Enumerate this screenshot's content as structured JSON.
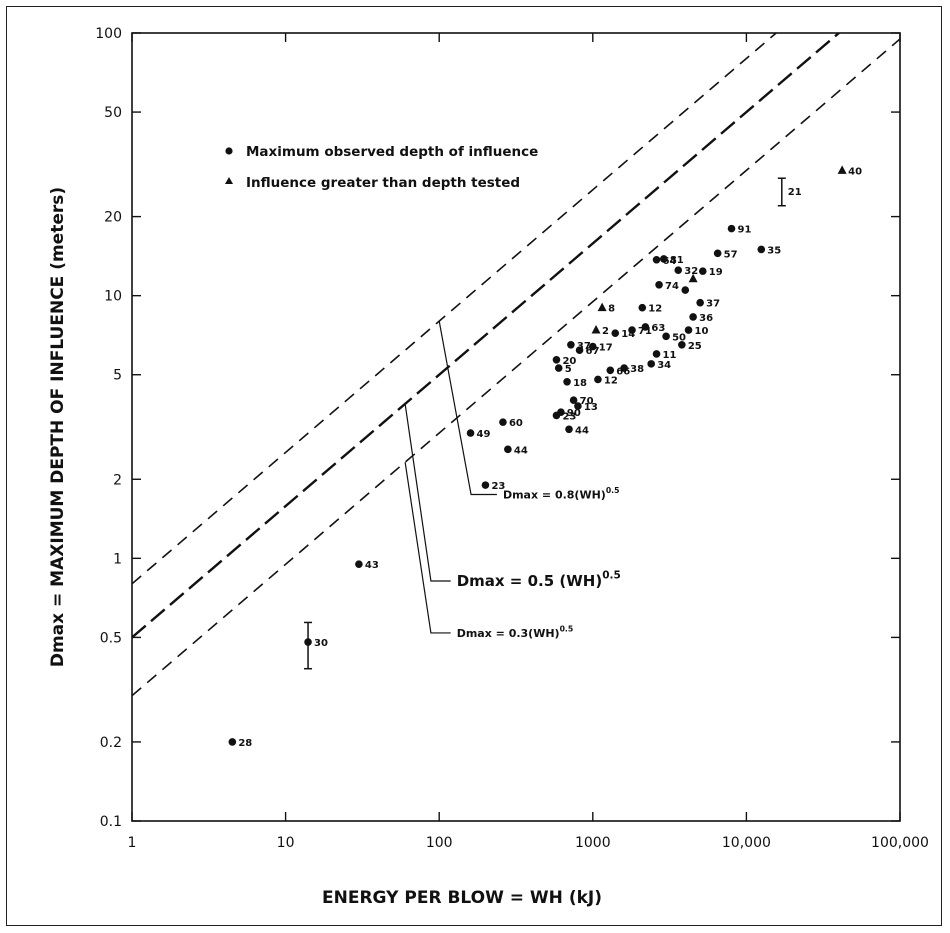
{
  "chart_data": {
    "type": "scatter",
    "xscale": "log",
    "yscale": "log",
    "xlim": [
      1,
      100000
    ],
    "ylim": [
      0.1,
      100
    ],
    "xlabel": "ENERGY PER BLOW = WH (kJ)",
    "ylabel": "Dmax = MAXIMUM DEPTH OF INFLUENCE (meters)",
    "x_ticks": [
      {
        "value": 1,
        "label": "1"
      },
      {
        "value": 10,
        "label": "10"
      },
      {
        "value": 100,
        "label": "100"
      },
      {
        "value": 1000,
        "label": "1000"
      },
      {
        "value": 10000,
        "label": "10,000"
      },
      {
        "value": 100000,
        "label": "100,000"
      }
    ],
    "y_ticks": [
      {
        "value": 0.1,
        "label": "0.1"
      },
      {
        "value": 0.2,
        "label": "0.2"
      },
      {
        "value": 0.5,
        "label": "0.5"
      },
      {
        "value": 1,
        "label": "1"
      },
      {
        "value": 2,
        "label": "2"
      },
      {
        "value": 5,
        "label": "5"
      },
      {
        "value": 10,
        "label": "10"
      },
      {
        "value": 20,
        "label": "20"
      },
      {
        "value": 50,
        "label": "50"
      },
      {
        "value": 100,
        "label": "100"
      }
    ],
    "legend": {
      "placement": "top-left",
      "entries": [
        {
          "marker": "circle",
          "label": "Maximum observed depth of influence"
        },
        {
          "marker": "triangle",
          "label": "Influence greater than depth tested"
        }
      ]
    },
    "lines": [
      {
        "coef": 0.8,
        "label_main": "Dmax",
        "label_rest": " = 0.8(WH)",
        "label_exp": "0.5",
        "label_size": 11,
        "dash": "12 8",
        "width": 1.6,
        "anchor_x": 100,
        "text_x": 260,
        "text_y": 1.75
      },
      {
        "coef": 0.5,
        "label_main": "Dmax",
        "label_rest": " = 0.5 (WH)",
        "label_exp": "0.5",
        "label_size": 15,
        "dash": "18 7",
        "width": 2.4,
        "anchor_x": 60,
        "text_x": 130,
        "text_y": 0.82
      },
      {
        "coef": 0.3,
        "label_main": "Dmax",
        "label_rest": " = 0.3(WH)",
        "label_exp": "0.5",
        "label_size": 11,
        "dash": "12 8",
        "width": 1.6,
        "anchor_x": 60,
        "text_x": 130,
        "text_y": 0.52
      }
    ],
    "points": [
      {
        "x": 4.5,
        "y": 0.2,
        "label": "28",
        "marker": "circle"
      },
      {
        "x": 14,
        "y": 0.48,
        "label": "30",
        "marker": "circle",
        "err": [
          0.38,
          0.57
        ]
      },
      {
        "x": 30,
        "y": 0.95,
        "label": "43",
        "marker": "circle"
      },
      {
        "x": 200,
        "y": 1.9,
        "label": "23",
        "marker": "circle"
      },
      {
        "x": 160,
        "y": 3.0,
        "label": "49",
        "marker": "circle"
      },
      {
        "x": 280,
        "y": 2.6,
        "label": "44",
        "marker": "circle"
      },
      {
        "x": 260,
        "y": 3.3,
        "label": "60",
        "marker": "circle"
      },
      {
        "x": 580,
        "y": 3.5,
        "label": "23",
        "marker": "circle"
      },
      {
        "x": 620,
        "y": 3.6,
        "label": "90",
        "marker": "circle"
      },
      {
        "x": 700,
        "y": 3.1,
        "label": "44",
        "marker": "circle"
      },
      {
        "x": 800,
        "y": 3.8,
        "label": "13",
        "marker": "circle"
      },
      {
        "x": 750,
        "y": 4.0,
        "label": "70",
        "marker": "circle"
      },
      {
        "x": 680,
        "y": 4.7,
        "label": "18",
        "marker": "circle"
      },
      {
        "x": 600,
        "y": 5.3,
        "label": "5",
        "marker": "circle"
      },
      {
        "x": 580,
        "y": 5.7,
        "label": "20",
        "marker": "circle"
      },
      {
        "x": 720,
        "y": 6.5,
        "label": "37",
        "marker": "circle"
      },
      {
        "x": 820,
        "y": 6.2,
        "label": "67",
        "marker": "circle"
      },
      {
        "x": 1000,
        "y": 6.4,
        "label": "17",
        "marker": "circle"
      },
      {
        "x": 1080,
        "y": 4.8,
        "label": "12",
        "marker": "circle"
      },
      {
        "x": 1300,
        "y": 5.2,
        "label": "66",
        "marker": "circle"
      },
      {
        "x": 1050,
        "y": 7.4,
        "label": "2",
        "marker": "triangle"
      },
      {
        "x": 1150,
        "y": 9.0,
        "label": "8",
        "marker": "triangle"
      },
      {
        "x": 1400,
        "y": 7.2,
        "label": "14",
        "marker": "circle"
      },
      {
        "x": 1800,
        "y": 7.4,
        "label": "71",
        "marker": "circle"
      },
      {
        "x": 2200,
        "y": 7.6,
        "label": "63",
        "marker": "circle"
      },
      {
        "x": 2100,
        "y": 9.0,
        "label": "12",
        "marker": "circle"
      },
      {
        "x": 2600,
        "y": 13.7,
        "label": "64",
        "marker": "circle"
      },
      {
        "x": 2900,
        "y": 13.8,
        "label": "81",
        "marker": "circle"
      },
      {
        "x": 2700,
        "y": 11.0,
        "label": "74",
        "marker": "circle"
      },
      {
        "x": 3600,
        "y": 12.5,
        "label": "32",
        "marker": "circle"
      },
      {
        "x": 4000,
        "y": 10.5,
        "label": "",
        "marker": "circle"
      },
      {
        "x": 4500,
        "y": 11.6,
        "label": "",
        "marker": "triangle"
      },
      {
        "x": 5200,
        "y": 12.4,
        "label": "19",
        "marker": "circle"
      },
      {
        "x": 5000,
        "y": 9.4,
        "label": "37",
        "marker": "circle"
      },
      {
        "x": 4500,
        "y": 8.3,
        "label": "36",
        "marker": "circle"
      },
      {
        "x": 4200,
        "y": 7.4,
        "label": "10",
        "marker": "circle"
      },
      {
        "x": 3800,
        "y": 6.5,
        "label": "25",
        "marker": "circle"
      },
      {
        "x": 3000,
        "y": 7.0,
        "label": "50",
        "marker": "circle"
      },
      {
        "x": 2600,
        "y": 6.0,
        "label": "11",
        "marker": "circle"
      },
      {
        "x": 2400,
        "y": 5.5,
        "label": "34",
        "marker": "circle"
      },
      {
        "x": 1600,
        "y": 5.3,
        "label": "38",
        "marker": "circle"
      },
      {
        "x": 6500,
        "y": 14.5,
        "label": "57",
        "marker": "circle"
      },
      {
        "x": 8000,
        "y": 18.0,
        "label": "91",
        "marker": "circle"
      },
      {
        "x": 12500,
        "y": 15.0,
        "label": "35",
        "marker": "circle"
      },
      {
        "x": 17000,
        "y": 25.0,
        "label": "21",
        "marker": "none",
        "err": [
          22,
          28
        ]
      },
      {
        "x": 42000,
        "y": 30.0,
        "label": "40",
        "marker": "triangle"
      }
    ]
  }
}
